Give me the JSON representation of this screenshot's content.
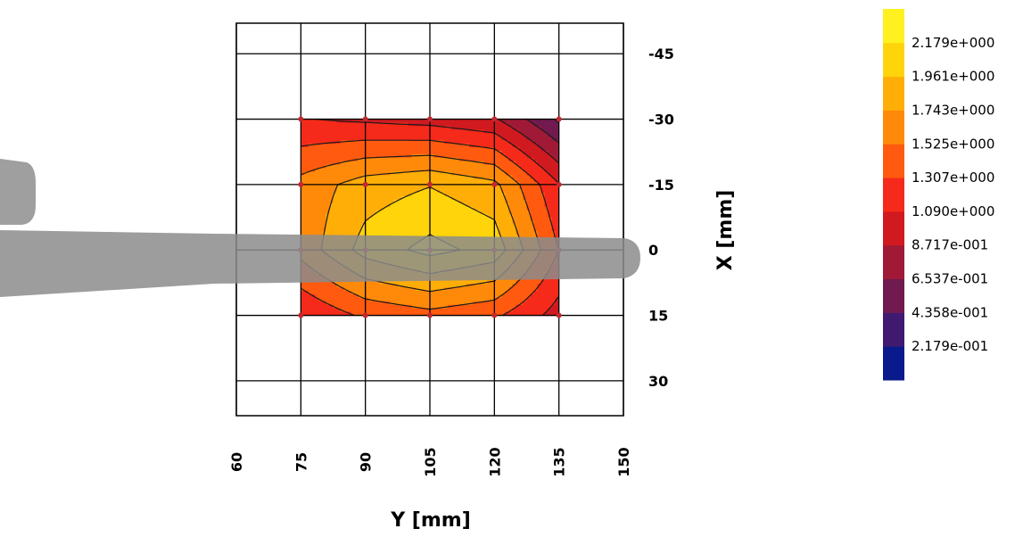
{
  "chart_data": {
    "type": "heatmap",
    "title": "",
    "xlabel": "Y [mm]",
    "ylabel": "X [mm]",
    "x_axis": {
      "ticks": [
        60,
        75,
        90,
        105,
        120,
        135,
        150
      ],
      "range": [
        60,
        150
      ]
    },
    "y_axis": {
      "ticks": [
        -45,
        -30,
        -15,
        0,
        15,
        30
      ],
      "range": [
        -52,
        38
      ],
      "reversed": true
    },
    "grid": true,
    "x": [
      75,
      90,
      105,
      120,
      135
    ],
    "y": [
      -30,
      -15,
      0,
      15
    ],
    "z": [
      [
        1.1,
        1.05,
        1.0,
        0.9,
        0.4
      ],
      [
        1.6,
        1.85,
        1.95,
        1.8,
        1.1
      ],
      [
        1.6,
        2.05,
        2.25,
        2.1,
        1.3
      ],
      [
        1.1,
        1.35,
        1.45,
        1.35,
        1.0
      ]
    ],
    "colorbar": {
      "placement": "right",
      "min": 0,
      "max": 2.397,
      "labels": [
        "2.179e+000",
        "1.961e+000",
        "1.743e+000",
        "1.525e+000",
        "1.307e+000",
        "1.090e+000",
        "8.717e-001",
        "6.537e-001",
        "4.358e-001",
        "2.179e-001"
      ],
      "colors": [
        "#0a1a8c",
        "#401a70",
        "#701a50",
        "#a01a38",
        "#d01a20",
        "#f52a1a",
        "#ff5a0f",
        "#ff8a0a",
        "#ffae08",
        "#ffd40a",
        "#fff020"
      ]
    },
    "overlay": {
      "description_color": "#8c8c8c"
    }
  }
}
